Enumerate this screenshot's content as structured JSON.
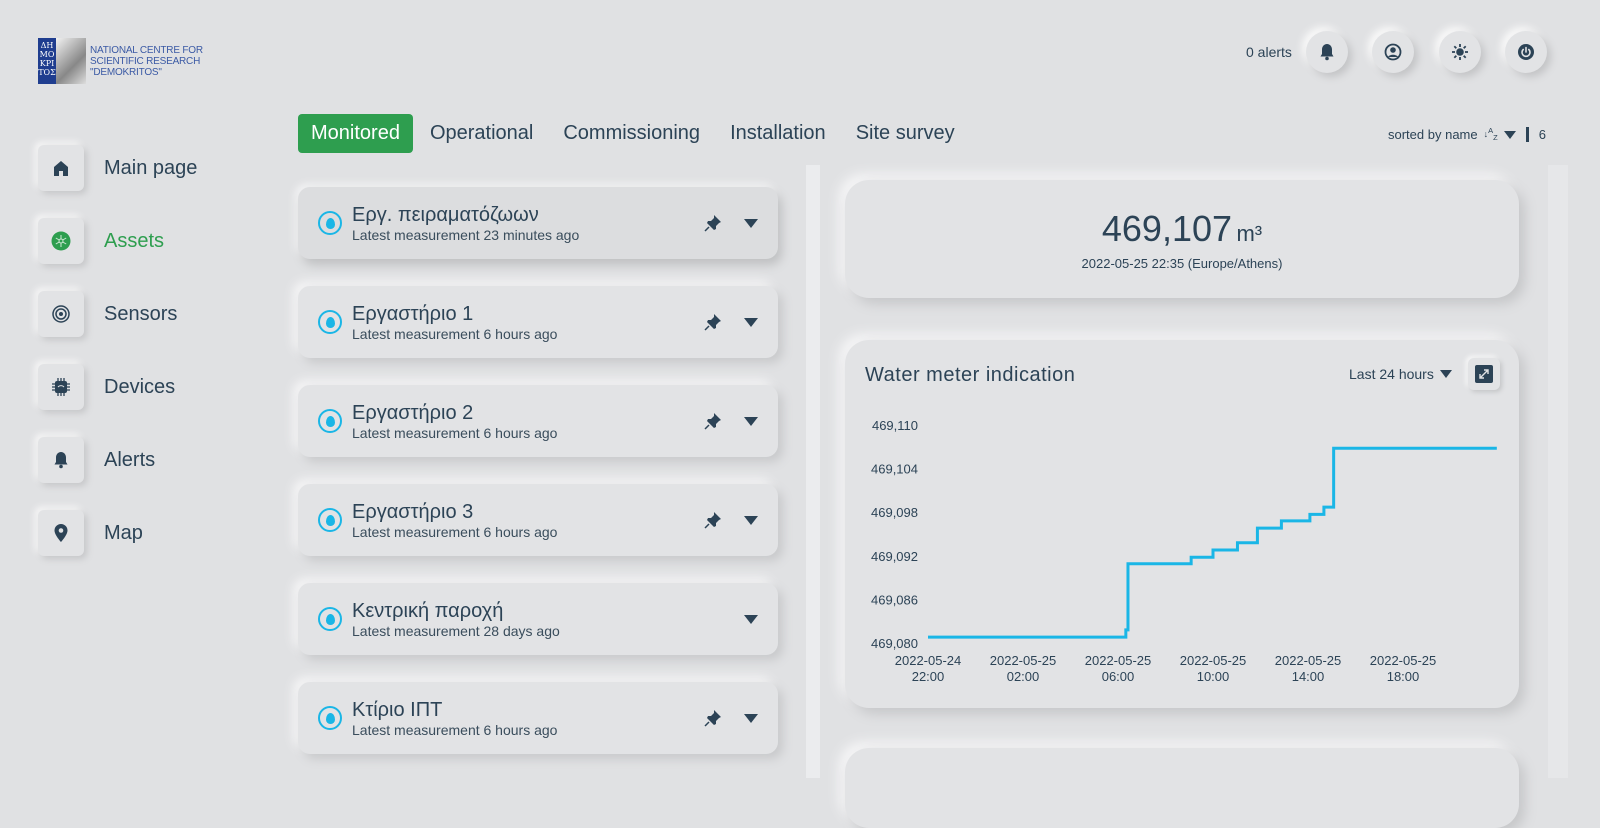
{
  "logo": {
    "text_lines": [
      "NATIONAL CENTRE FOR",
      "SCIENTIFIC RESEARCH",
      "\"DEMOKRITOS\""
    ],
    "mark": "ΔΗΜΟΚΡΙΤΟΣ"
  },
  "header": {
    "alerts": "0 alerts",
    "icons": [
      "bell-icon",
      "user-icon",
      "theme-icon",
      "power-icon"
    ]
  },
  "sidebar": {
    "items": [
      {
        "label": "Main page",
        "icon": "home-icon"
      },
      {
        "label": "Assets",
        "icon": "assets-icon",
        "active": true
      },
      {
        "label": "Sensors",
        "icon": "sensor-icon"
      },
      {
        "label": "Devices",
        "icon": "chip-icon"
      },
      {
        "label": "Alerts",
        "icon": "bell-icon"
      },
      {
        "label": "Map",
        "icon": "map-pin-icon"
      }
    ]
  },
  "tabs": [
    {
      "label": "Monitored",
      "active": true
    },
    {
      "label": "Operational"
    },
    {
      "label": "Commissioning"
    },
    {
      "label": "Installation"
    },
    {
      "label": "Site survey"
    }
  ],
  "sort": {
    "label": "sorted by name",
    "count": "6"
  },
  "assets": [
    {
      "name": "Εργ. πειραματόζωων",
      "sub": "Latest measurement 23 minutes ago",
      "pinned": true
    },
    {
      "name": "Εργαστήριο 1",
      "sub": "Latest measurement 6 hours ago",
      "pinned": true
    },
    {
      "name": "Εργαστήριο 2",
      "sub": "Latest measurement 6 hours ago",
      "pinned": true
    },
    {
      "name": "Εργαστήριο 3",
      "sub": "Latest measurement 6 hours ago",
      "pinned": true
    },
    {
      "name": "Κεντρική παροχή",
      "sub": "Latest measurement 28 days ago",
      "pinned": false
    },
    {
      "name": "Κτίριο ΙΠΤ",
      "sub": "Latest measurement 6 hours ago",
      "pinned": true
    }
  ],
  "current": {
    "value": "469,107",
    "unit": "m³",
    "timestamp": "2022-05-25 22:35 (Europe/Athens)"
  },
  "chart_card": {
    "title": "Water meter indication",
    "range": "Last 24 hours"
  },
  "chart_data": {
    "type": "line",
    "step": true,
    "title": "Water meter indication",
    "xlabel": "",
    "ylabel": "",
    "x_unit": "hours since 2022-05-24 22:00",
    "ylim": [
      469080,
      469110
    ],
    "yticks": [
      "469,080",
      "469,086",
      "469,092",
      "469,098",
      "469,104",
      "469,110"
    ],
    "ytick_values": [
      469080,
      469086,
      469092,
      469098,
      469104,
      469110
    ],
    "xticks": [
      [
        "2022-05-24",
        "22:00"
      ],
      [
        "2022-05-25",
        "02:00"
      ],
      [
        "2022-05-25",
        "06:00"
      ],
      [
        "2022-05-25",
        "10:00"
      ],
      [
        "2022-05-25",
        "14:00"
      ],
      [
        "2022-05-25",
        "18:00"
      ]
    ],
    "xtick_values": [
      0,
      4,
      8,
      12,
      16,
      20
    ],
    "series": [
      {
        "name": "Water meter",
        "color": "#1ab6e6",
        "points": [
          [
            0,
            469080.8
          ],
          [
            8.33,
            469081.8
          ],
          [
            8.42,
            469090.9
          ],
          [
            11.08,
            469091.8
          ],
          [
            12,
            469092.8
          ],
          [
            13.03,
            469093.8
          ],
          [
            13.87,
            469095.8
          ],
          [
            14.88,
            469096.8
          ],
          [
            16.08,
            469097.7
          ],
          [
            16.67,
            469098.7
          ],
          [
            17.08,
            469106.8
          ],
          [
            23.95,
            469106.8
          ]
        ]
      }
    ]
  }
}
